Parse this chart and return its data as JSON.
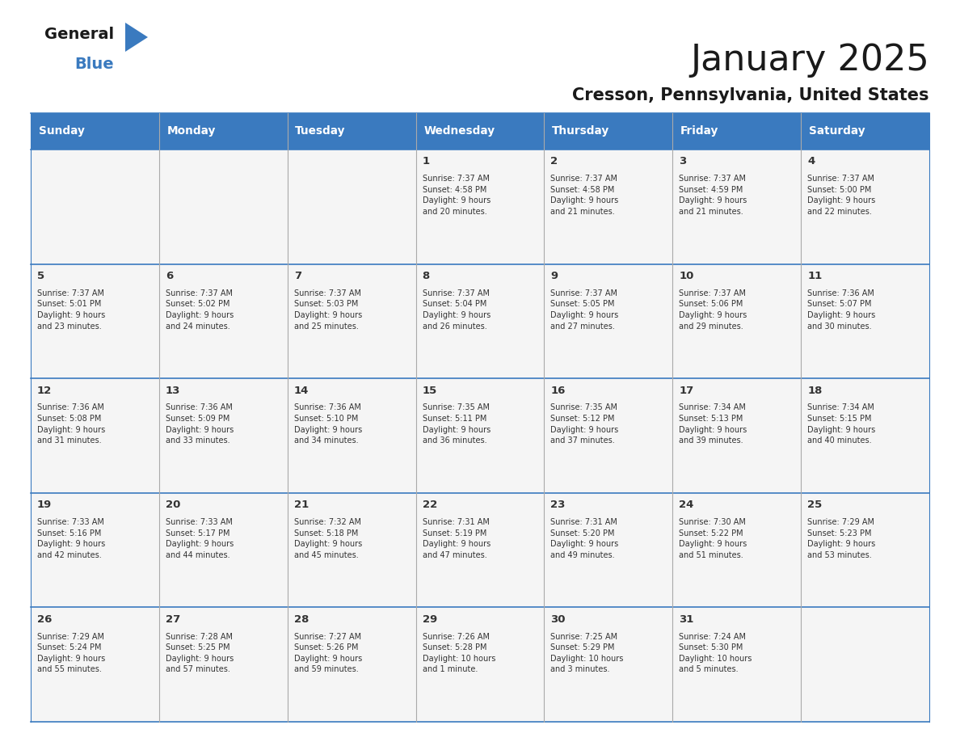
{
  "title": "January 2025",
  "subtitle": "Cresson, Pennsylvania, United States",
  "header_bg": "#3a7abf",
  "header_text_color": "#ffffff",
  "cell_bg": "#f5f5f5",
  "border_color": "#3a7abf",
  "grid_color": "#aaaaaa",
  "text_color": "#333333",
  "day_headers": [
    "Sunday",
    "Monday",
    "Tuesday",
    "Wednesday",
    "Thursday",
    "Friday",
    "Saturday"
  ],
  "weeks": [
    [
      {
        "day": "",
        "info": ""
      },
      {
        "day": "",
        "info": ""
      },
      {
        "day": "",
        "info": ""
      },
      {
        "day": "1",
        "info": "Sunrise: 7:37 AM\nSunset: 4:58 PM\nDaylight: 9 hours\nand 20 minutes."
      },
      {
        "day": "2",
        "info": "Sunrise: 7:37 AM\nSunset: 4:58 PM\nDaylight: 9 hours\nand 21 minutes."
      },
      {
        "day": "3",
        "info": "Sunrise: 7:37 AM\nSunset: 4:59 PM\nDaylight: 9 hours\nand 21 minutes."
      },
      {
        "day": "4",
        "info": "Sunrise: 7:37 AM\nSunset: 5:00 PM\nDaylight: 9 hours\nand 22 minutes."
      }
    ],
    [
      {
        "day": "5",
        "info": "Sunrise: 7:37 AM\nSunset: 5:01 PM\nDaylight: 9 hours\nand 23 minutes."
      },
      {
        "day": "6",
        "info": "Sunrise: 7:37 AM\nSunset: 5:02 PM\nDaylight: 9 hours\nand 24 minutes."
      },
      {
        "day": "7",
        "info": "Sunrise: 7:37 AM\nSunset: 5:03 PM\nDaylight: 9 hours\nand 25 minutes."
      },
      {
        "day": "8",
        "info": "Sunrise: 7:37 AM\nSunset: 5:04 PM\nDaylight: 9 hours\nand 26 minutes."
      },
      {
        "day": "9",
        "info": "Sunrise: 7:37 AM\nSunset: 5:05 PM\nDaylight: 9 hours\nand 27 minutes."
      },
      {
        "day": "10",
        "info": "Sunrise: 7:37 AM\nSunset: 5:06 PM\nDaylight: 9 hours\nand 29 minutes."
      },
      {
        "day": "11",
        "info": "Sunrise: 7:36 AM\nSunset: 5:07 PM\nDaylight: 9 hours\nand 30 minutes."
      }
    ],
    [
      {
        "day": "12",
        "info": "Sunrise: 7:36 AM\nSunset: 5:08 PM\nDaylight: 9 hours\nand 31 minutes."
      },
      {
        "day": "13",
        "info": "Sunrise: 7:36 AM\nSunset: 5:09 PM\nDaylight: 9 hours\nand 33 minutes."
      },
      {
        "day": "14",
        "info": "Sunrise: 7:36 AM\nSunset: 5:10 PM\nDaylight: 9 hours\nand 34 minutes."
      },
      {
        "day": "15",
        "info": "Sunrise: 7:35 AM\nSunset: 5:11 PM\nDaylight: 9 hours\nand 36 minutes."
      },
      {
        "day": "16",
        "info": "Sunrise: 7:35 AM\nSunset: 5:12 PM\nDaylight: 9 hours\nand 37 minutes."
      },
      {
        "day": "17",
        "info": "Sunrise: 7:34 AM\nSunset: 5:13 PM\nDaylight: 9 hours\nand 39 minutes."
      },
      {
        "day": "18",
        "info": "Sunrise: 7:34 AM\nSunset: 5:15 PM\nDaylight: 9 hours\nand 40 minutes."
      }
    ],
    [
      {
        "day": "19",
        "info": "Sunrise: 7:33 AM\nSunset: 5:16 PM\nDaylight: 9 hours\nand 42 minutes."
      },
      {
        "day": "20",
        "info": "Sunrise: 7:33 AM\nSunset: 5:17 PM\nDaylight: 9 hours\nand 44 minutes."
      },
      {
        "day": "21",
        "info": "Sunrise: 7:32 AM\nSunset: 5:18 PM\nDaylight: 9 hours\nand 45 minutes."
      },
      {
        "day": "22",
        "info": "Sunrise: 7:31 AM\nSunset: 5:19 PM\nDaylight: 9 hours\nand 47 minutes."
      },
      {
        "day": "23",
        "info": "Sunrise: 7:31 AM\nSunset: 5:20 PM\nDaylight: 9 hours\nand 49 minutes."
      },
      {
        "day": "24",
        "info": "Sunrise: 7:30 AM\nSunset: 5:22 PM\nDaylight: 9 hours\nand 51 minutes."
      },
      {
        "day": "25",
        "info": "Sunrise: 7:29 AM\nSunset: 5:23 PM\nDaylight: 9 hours\nand 53 minutes."
      }
    ],
    [
      {
        "day": "26",
        "info": "Sunrise: 7:29 AM\nSunset: 5:24 PM\nDaylight: 9 hours\nand 55 minutes."
      },
      {
        "day": "27",
        "info": "Sunrise: 7:28 AM\nSunset: 5:25 PM\nDaylight: 9 hours\nand 57 minutes."
      },
      {
        "day": "28",
        "info": "Sunrise: 7:27 AM\nSunset: 5:26 PM\nDaylight: 9 hours\nand 59 minutes."
      },
      {
        "day": "29",
        "info": "Sunrise: 7:26 AM\nSunset: 5:28 PM\nDaylight: 10 hours\nand 1 minute."
      },
      {
        "day": "30",
        "info": "Sunrise: 7:25 AM\nSunset: 5:29 PM\nDaylight: 10 hours\nand 3 minutes."
      },
      {
        "day": "31",
        "info": "Sunrise: 7:24 AM\nSunset: 5:30 PM\nDaylight: 10 hours\nand 5 minutes."
      },
      {
        "day": "",
        "info": ""
      }
    ]
  ]
}
